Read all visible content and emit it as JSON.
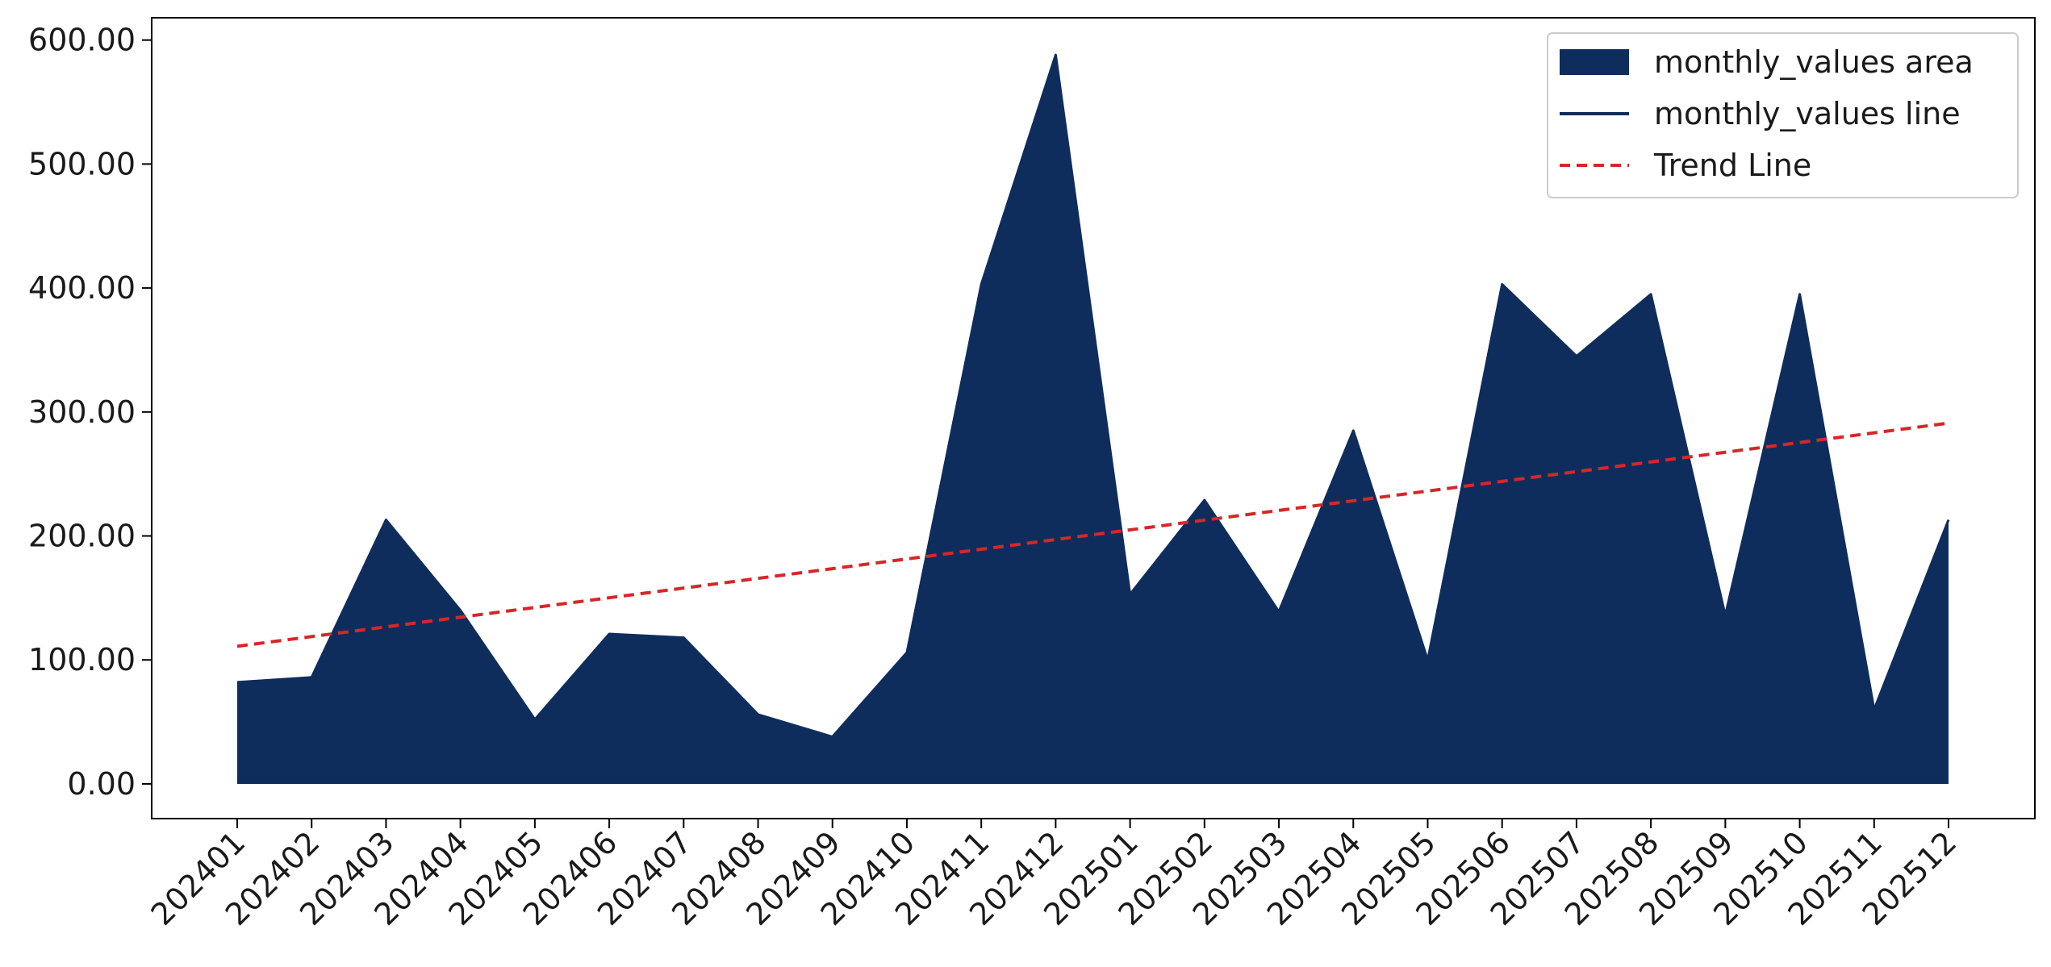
{
  "chart_data": {
    "type": "area",
    "categories": [
      "202401",
      "202402",
      "202403",
      "202404",
      "202405",
      "202406",
      "202407",
      "202408",
      "202409",
      "202410",
      "202411",
      "202412",
      "202501",
      "202502",
      "202503",
      "202504",
      "202505",
      "202506",
      "202507",
      "202508",
      "202509",
      "202510",
      "202511",
      "202512"
    ],
    "series": [
      {
        "name": "monthly_values area",
        "values": [
          82,
          86,
          213,
          140,
          52,
          121,
          118,
          56,
          38,
          106,
          403,
          588,
          153,
          229,
          139,
          285,
          100,
          403,
          345,
          395,
          136,
          395,
          60,
          213
        ]
      }
    ],
    "trend": {
      "name": "Trend Line",
      "start": 111,
      "end": 291
    },
    "legend": [
      "monthly_values area",
      "monthly_values line",
      "Trend Line"
    ],
    "legend_position": "top-right",
    "yticks": [
      "0.00",
      "100.00",
      "200.00",
      "300.00",
      "400.00",
      "500.00",
      "600.00"
    ],
    "ylim": [
      -28,
      618
    ],
    "title": "",
    "xlabel": "",
    "ylabel": "",
    "grid": false,
    "colors": {
      "area": "#0f2d5c",
      "line": "#0f2d5c",
      "trend": "#d62728"
    }
  }
}
